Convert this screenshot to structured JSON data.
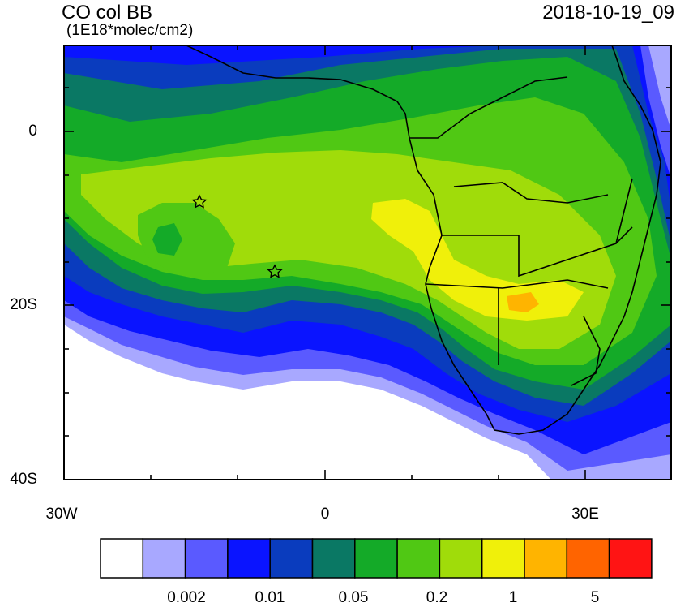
{
  "header": {
    "title": "CO col BB",
    "units": "(1E18*molec/cm2)",
    "datetime": "2018-10-19_09"
  },
  "axes": {
    "lat_labels": [
      "0",
      "20S",
      "40S"
    ],
    "lon_labels": [
      "30W",
      "0",
      "30E"
    ]
  },
  "colorbar": {
    "colors": [
      "#ffffff",
      "#a8a8ff",
      "#5a5aff",
      "#0a14ff",
      "#0a3cbe",
      "#0a7864",
      "#14aa28",
      "#50c814",
      "#a0dc0a",
      "#f0f00a",
      "#ffb400",
      "#ff6400",
      "#ff1414"
    ],
    "labels": [
      "0.002",
      "0.01",
      "0.05",
      "0.2",
      "1",
      "5"
    ]
  },
  "map": {
    "region": "Southern Africa and South Atlantic",
    "lon_range": [
      -30,
      40
    ],
    "lat_range": [
      -40,
      10
    ],
    "markers": [
      "star",
      "star"
    ]
  }
}
